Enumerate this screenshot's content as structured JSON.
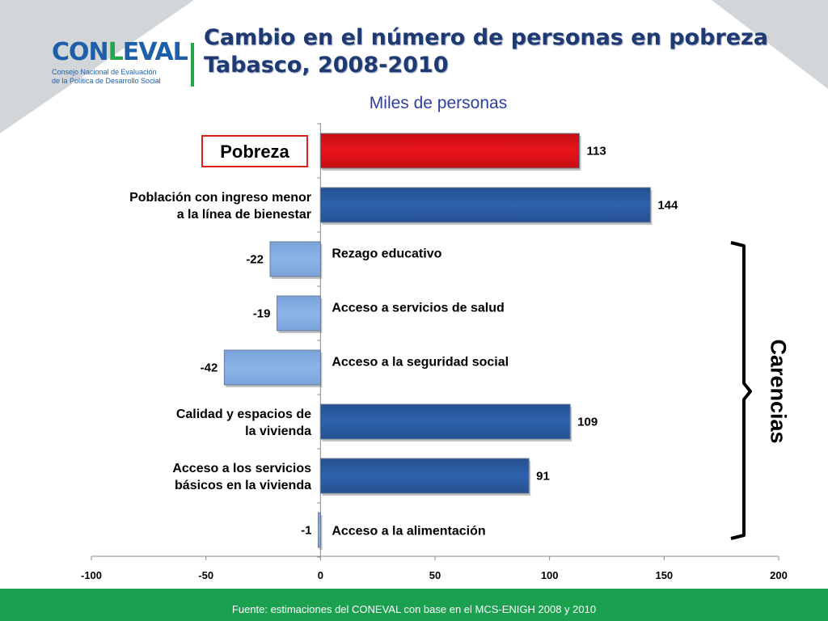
{
  "header": {
    "title_line1": "Cambio en el número de personas en pobreza",
    "title_line2": "Tabasco, 2008-2010",
    "subtitle": "Miles de personas"
  },
  "logo": {
    "word_a": "CON",
    "word_l": "L",
    "word_b": "EVAL",
    "line1": "Consejo Nacional de Evaluación",
    "line2": "de la Política de Desarrollo Social"
  },
  "footer": {
    "source": "Fuente: estimaciones del CONEVAL con base en el MCS-ENIGH 2008 y 2010"
  },
  "bracket_label": "Carencias",
  "colors": {
    "pobreza": "#e8141b",
    "positive": "#2e62ad",
    "negative": "#8db4e8",
    "title": "#1f3a73",
    "footer": "#1aa04e"
  },
  "chart_data": {
    "type": "bar",
    "orientation": "horizontal",
    "categories": [
      "Pobreza",
      "Población con ingreso menor a la línea de bienestar",
      "Rezago educativo",
      "Acceso a servicios de salud",
      "Acceso a  la seguridad social",
      "Calidad y espacios de la vivienda",
      "Acceso a los servicios básicos en la vivienda",
      "Acceso a la alimentación"
    ],
    "label_lines": [
      [
        "Pobreza"
      ],
      [
        "Población con ingreso menor",
        "a la línea de bienestar"
      ],
      [
        "Rezago educativo"
      ],
      [
        "Acceso a servicios de salud"
      ],
      [
        "Acceso a  la seguridad social"
      ],
      [
        "Calidad y espacios de",
        "la vivienda"
      ],
      [
        "Acceso a los servicios",
        "básicos en la vivienda"
      ],
      [
        "Acceso a la alimentación"
      ]
    ],
    "values": [
      113,
      144,
      -22,
      -19,
      -42,
      109,
      91,
      -1
    ],
    "value_labels": [
      "113",
      "144",
      "-22",
      "-19",
      "-42",
      "109",
      "91",
      "-1"
    ],
    "highlight": [
      true,
      false,
      false,
      false,
      false,
      false,
      false,
      false
    ],
    "xlim": [
      -100,
      200
    ],
    "xticks": [
      -100,
      -50,
      0,
      50,
      100,
      150,
      200
    ],
    "xtick_labels": [
      "-100",
      "-50",
      "0",
      "50",
      "100",
      "150",
      "200"
    ],
    "grid": false,
    "legend": "none"
  }
}
